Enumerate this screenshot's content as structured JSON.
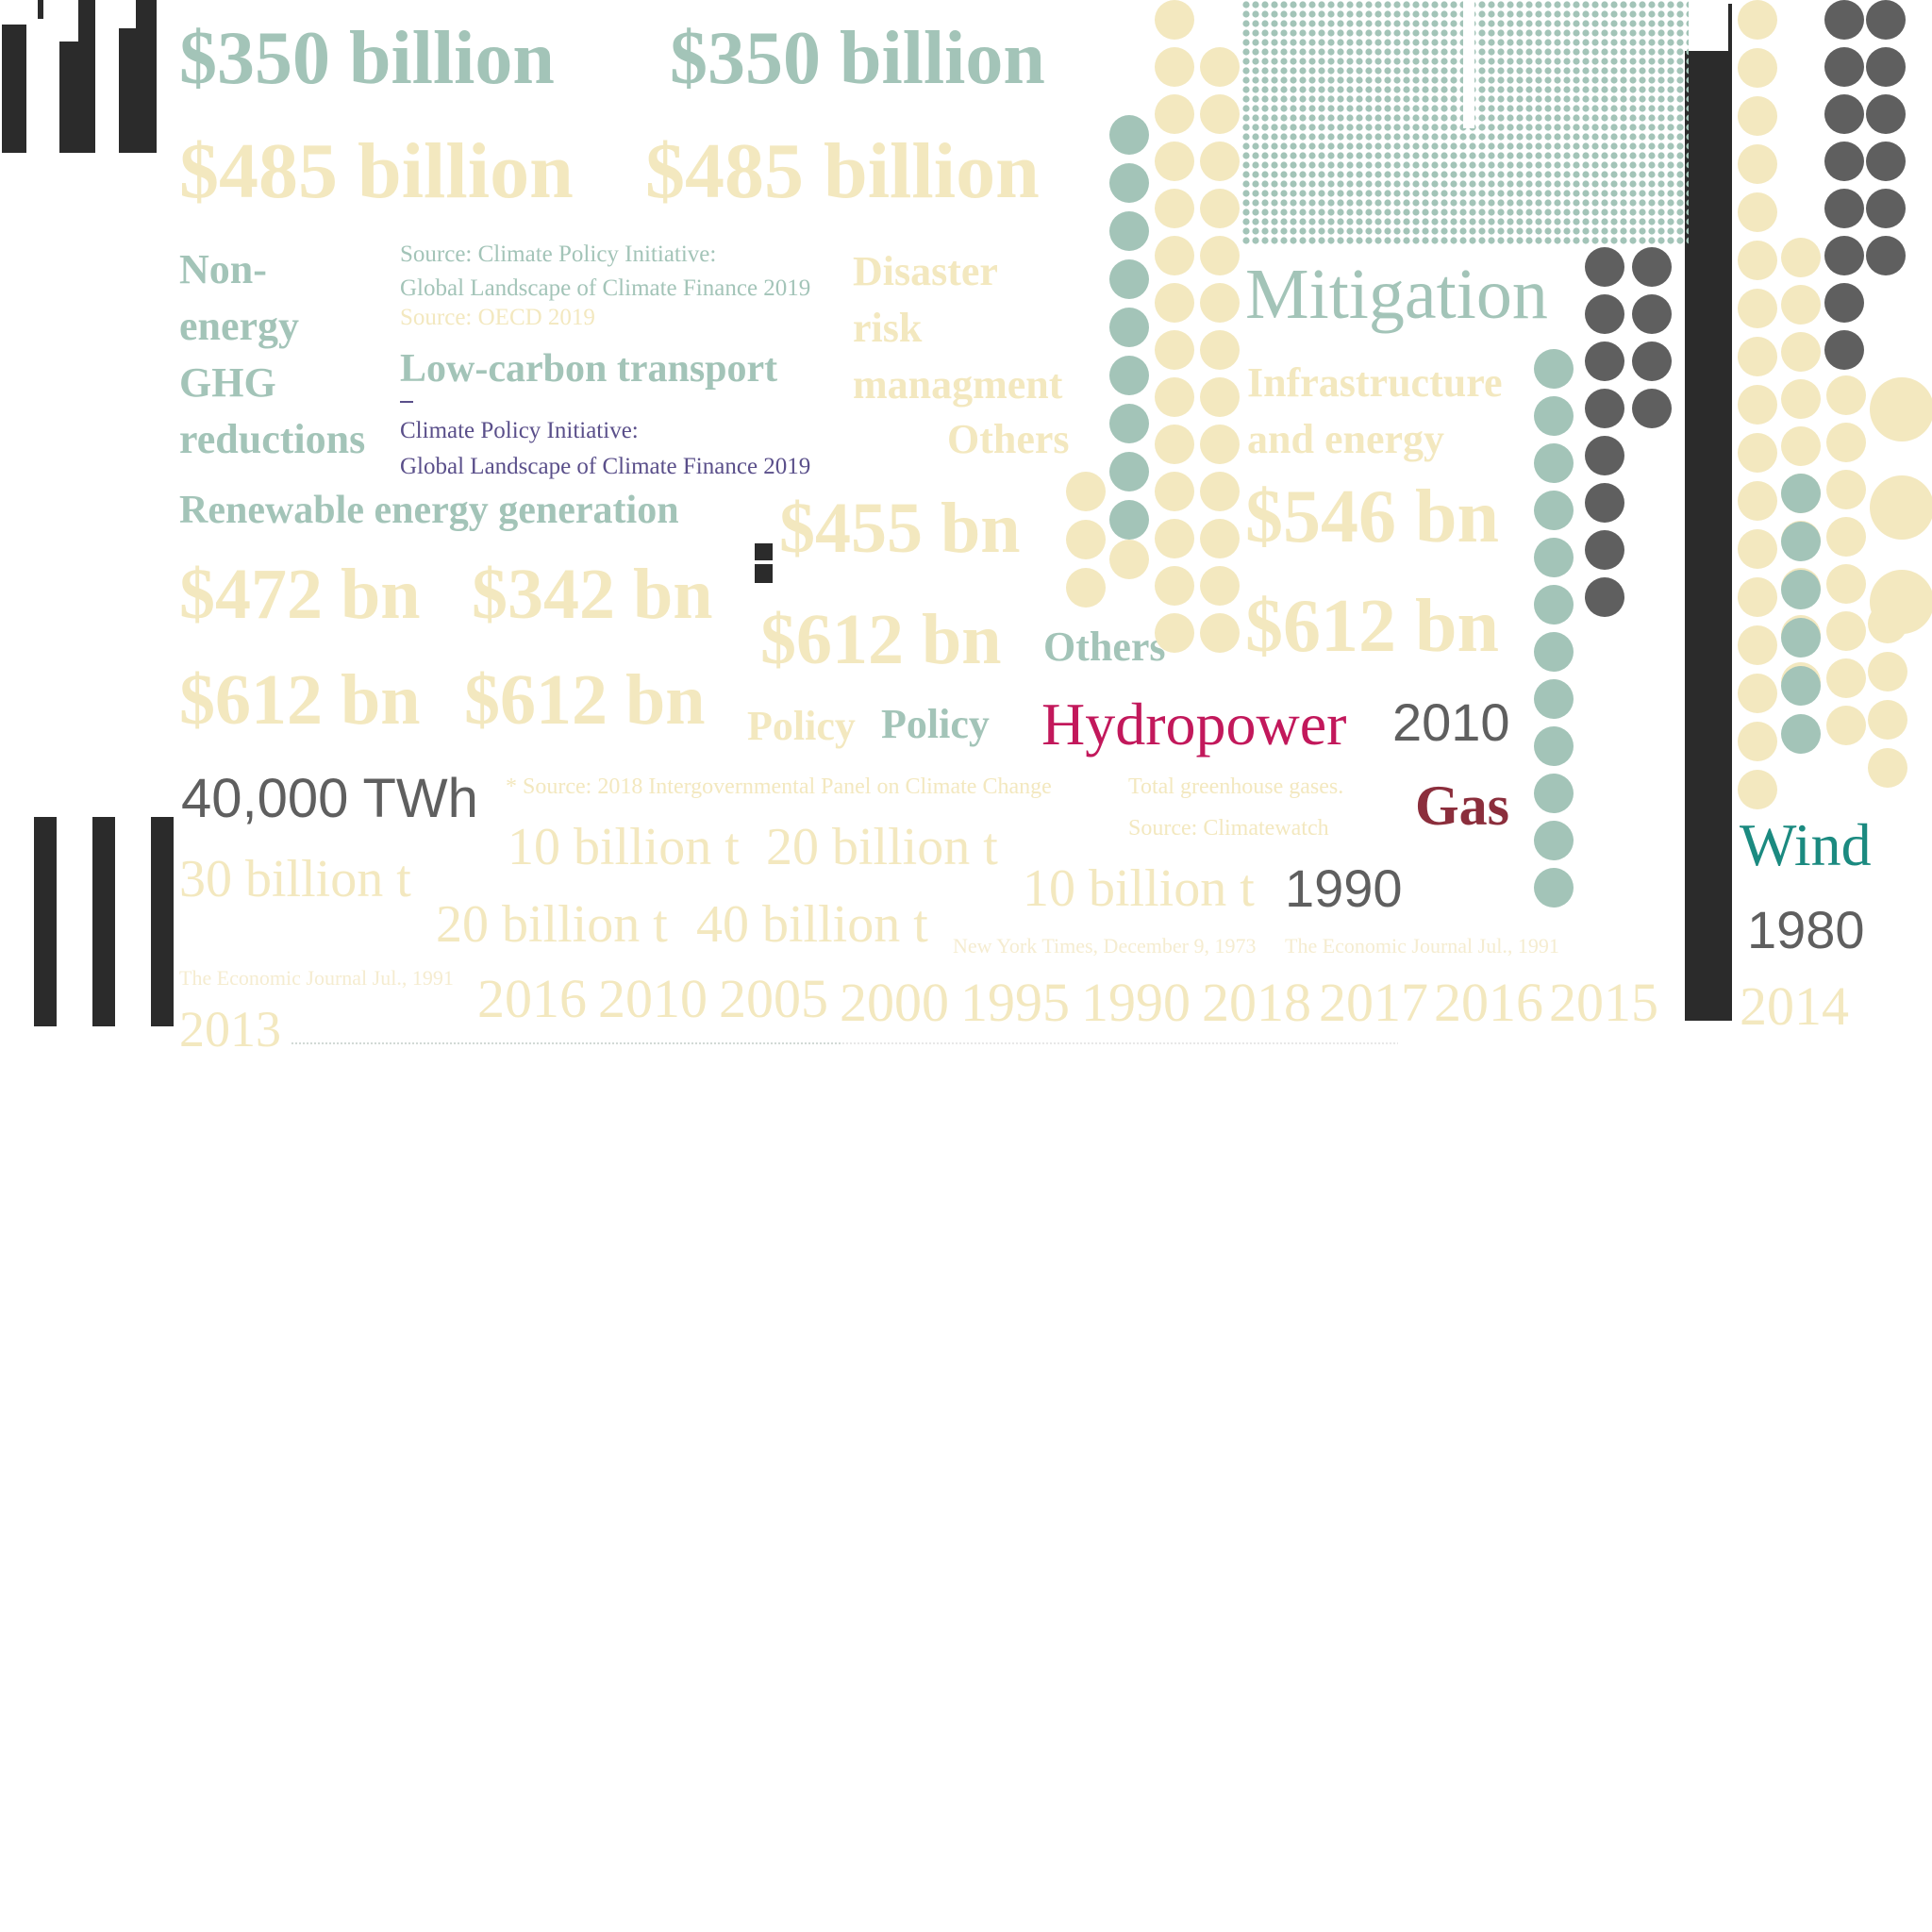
{
  "palette": {
    "sage": "#a3c4b8",
    "cream": "#f3e8bf",
    "dark": "#2b2b2b",
    "gray": "#5f5f5f",
    "magenta": "#c2185b",
    "maroon": "#8b2e3c",
    "teal": "#1b8a80",
    "purple": "#5a4f8a"
  },
  "headlines": {
    "amount_350_a": "$350 billion",
    "amount_350_b": "$350 billion",
    "amount_485_a": "$485 billion",
    "amount_485_b": "$485 billion"
  },
  "categories": {
    "non_energy": "Non-\nenergy\nGHG\nreductions",
    "low_carbon_transport": "Low-carbon transport",
    "renewable_energy": "Renewable energy generation",
    "disaster": "Disaster\nrisk\nmanagment",
    "others_cream": "Others",
    "others_sage": "Others",
    "mitigation": "Mitigation",
    "infrastructure": "Infrastructure\nand energy",
    "policy_cream": "Policy",
    "policy_sage": "Policy"
  },
  "sources": {
    "cpi_sage": "Source: Climate Policy Initiative:\nGlobal Landscape of Climate Finance 2019",
    "oecd": "Source: OECD 2019",
    "cpi_purple": "Climate Policy Initiative:\nGlobal Landscape of Climate Finance 2019",
    "ipcc": "* Source: 2018 Intergovernmental Panel on Climate Change",
    "total_ghg": "Total greenhouse gases.",
    "climatewatch": "Source: Climatewatch",
    "nyt": "New York Times, December 9, 1973",
    "econ_a": "The Economic Journal Jul., 1991",
    "econ_b": "The Economic Journal Jul., 1991"
  },
  "values": {
    "v455": "$455 bn",
    "v472": "$472 bn",
    "v342": "$342 bn",
    "v612_a": "$612 bn",
    "v612_b": "$612 bn",
    "v612_c": "$612 bn",
    "v612_d": "$612 bn",
    "v546": "$546 bn",
    "twh": "40,000 TWh",
    "t30": "30 billion t",
    "t10_a": "10 billion t",
    "t20_a": "20 billion t",
    "t20_b": "20 billion t",
    "t40": "40 billion t",
    "t10_b": "10 billion t"
  },
  "energy_labels": {
    "hydropower": "Hydropower",
    "gas": "Gas",
    "wind": "Wind"
  },
  "years": {
    "y2010_sans": "2010",
    "y1990_sans": "1990",
    "y1980_sans": "1980",
    "y2014": "2014",
    "y2013": "2013",
    "row": [
      "2016",
      "2010",
      "2005",
      "2000",
      "1995",
      "1990",
      "2018",
      "2017",
      "2016",
      "2015"
    ]
  }
}
